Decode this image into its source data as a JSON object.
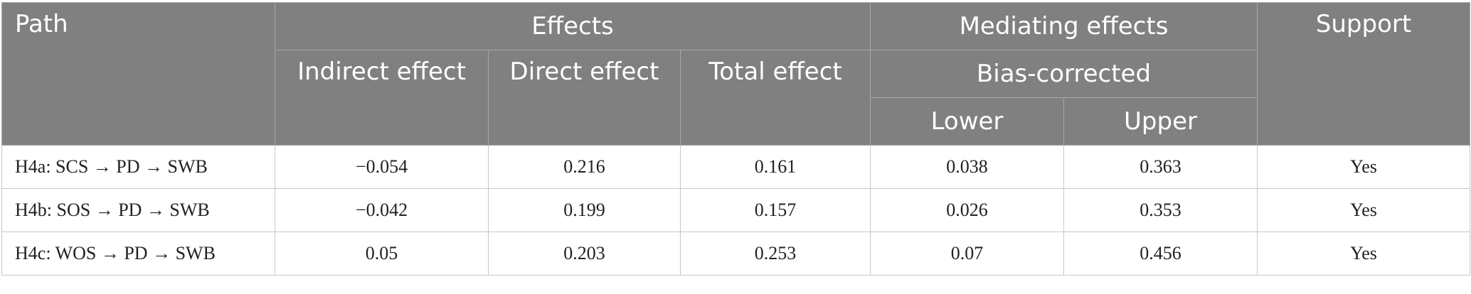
{
  "header": {
    "path": "Path",
    "effects": "Effects",
    "mediating_effects": "Mediating effects",
    "support": "Support",
    "indirect_effect": "Indirect effect",
    "direct_effect": "Direct effect",
    "total_effect": "Total effect",
    "bias_corrected": "Bias-corrected",
    "lower": "Lower",
    "upper": "Upper"
  },
  "rows": [
    {
      "path": "H4a: SCS → PD → SWB",
      "indirect": "−0.054",
      "direct": "0.216",
      "total": "0.161",
      "lower": "0.038",
      "upper": "0.363",
      "support": "Yes"
    },
    {
      "path": "H4b: SOS → PD → SWB",
      "indirect": "−0.042",
      "direct": "0.199",
      "total": "0.157",
      "lower": "0.026",
      "upper": "0.353",
      "support": "Yes"
    },
    {
      "path": "H4c: WOS → PD → SWB",
      "indirect": "0.05",
      "direct": "0.203",
      "total": "0.253",
      "lower": "0.07",
      "upper": "0.456",
      "support": "Yes"
    }
  ]
}
